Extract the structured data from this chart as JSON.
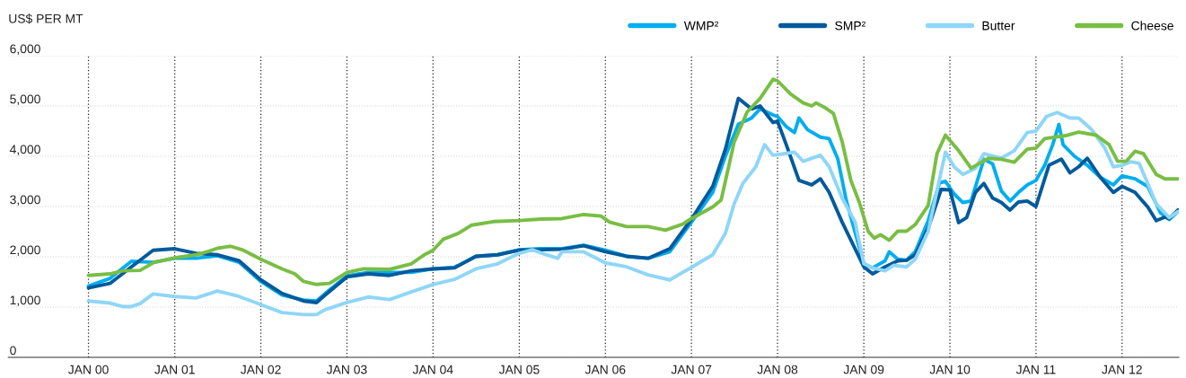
{
  "chart_data": {
    "type": "line",
    "ylabel": "US$ PER MT",
    "xlim": [
      "1999-01-26",
      "2012-08-29"
    ],
    "ylim": [
      0,
      6000
    ],
    "xticks": [
      {
        "value": "2000-01",
        "label": "JAN 00"
      },
      {
        "value": "2001-01",
        "label": "JAN 01"
      },
      {
        "value": "2002-01",
        "label": "JAN 02"
      },
      {
        "value": "2003-01",
        "label": "JAN 03"
      },
      {
        "value": "2004-01",
        "label": "JAN 04"
      },
      {
        "value": "2005-01",
        "label": "JAN 05"
      },
      {
        "value": "2006-01",
        "label": "JAN 06"
      },
      {
        "value": "2007-01",
        "label": "JAN 07"
      },
      {
        "value": "2008-01",
        "label": "JAN 08"
      },
      {
        "value": "2009-01",
        "label": "JAN 09"
      },
      {
        "value": "2010-01",
        "label": "JAN 10"
      },
      {
        "value": "2011-01",
        "label": "JAN 11"
      },
      {
        "value": "2012-01",
        "label": "JAN 12"
      }
    ],
    "yticks": [
      0,
      {
        "value": 1000,
        "label": "1,000"
      },
      {
        "value": 2000,
        "label": "2,000"
      },
      {
        "value": 3000,
        "label": "3,000"
      },
      {
        "value": 4000,
        "label": "4,000"
      },
      {
        "value": 5000,
        "label": "5,000"
      },
      {
        "value": 6000,
        "label": "6,000"
      }
    ],
    "grid": true,
    "legend": "top right",
    "series": [
      {
        "name": "WMP²",
        "color": "#00aeef",
        "x": [
          "2000-01-01",
          "2000-04-01",
          "2000-07-01",
          "2000-10-01",
          "2001-01-01",
          "2001-04-01",
          "2001-07-01",
          "2001-10-01",
          "2002-01-01",
          "2002-04-01",
          "2002-07-01",
          "2002-08-25",
          "2002-10-01",
          "2003-01-01",
          "2003-04-01",
          "2003-07-01",
          "2003-10-01",
          "2004-01-01",
          "2004-04-01",
          "2004-07-01",
          "2004-10-01",
          "2005-01-01",
          "2005-04-01",
          "2005-07-01",
          "2005-10-01",
          "2006-01-01",
          "2006-04-01",
          "2006-07-01",
          "2006-10-01",
          "2007-01-01",
          "2007-04-01",
          "2007-05-25",
          "2007-07-19",
          "2007-09-13",
          "2007-10-19",
          "2007-12-13",
          "2008-01-01",
          "2008-02-07",
          "2008-03-13",
          "2008-04-01",
          "2008-05-07",
          "2008-07-01",
          "2008-08-07",
          "2008-09-13",
          "2008-10-19",
          "2009-01-01",
          "2009-02-07",
          "2009-04-01",
          "2009-04-19",
          "2009-05-25",
          "2009-07-01",
          "2009-08-07",
          "2009-10-01",
          "2009-11-18",
          "2009-12-13",
          "2010-01-19",
          "2010-02-25",
          "2010-04-01",
          "2010-05-25",
          "2010-07-01",
          "2010-08-07",
          "2010-09-13",
          "2010-10-19",
          "2010-11-25",
          "2011-01-01",
          "2011-02-07",
          "2011-03-13",
          "2011-04-08",
          "2011-04-26",
          "2011-06-13",
          "2011-08-07",
          "2011-10-01",
          "2011-11-25",
          "2012-01-01",
          "2012-02-25",
          "2012-04-19",
          "2012-06-13",
          "2012-07-19",
          "2012-08-25"
        ],
        "values": [
          1420,
          1570,
          1910,
          1890,
          1970,
          1970,
          2020,
          1890,
          1510,
          1240,
          1140,
          1120,
          1270,
          1620,
          1690,
          1690,
          1690,
          1760,
          1790,
          2010,
          2040,
          2140,
          2160,
          2160,
          2230,
          2130,
          2010,
          1970,
          2100,
          2690,
          3280,
          4000,
          4640,
          4760,
          4940,
          4820,
          4790,
          4590,
          4470,
          4760,
          4530,
          4380,
          4350,
          3940,
          3110,
          1860,
          1780,
          1920,
          2100,
          1950,
          1930,
          2100,
          2720,
          3470,
          3500,
          3250,
          3080,
          3110,
          3940,
          3850,
          3310,
          3110,
          3280,
          3430,
          3520,
          3820,
          4230,
          4630,
          4230,
          4000,
          3820,
          3580,
          3430,
          3610,
          3550,
          3400,
          2870,
          2740,
          2900
        ]
      },
      {
        "name": "SMP²",
        "color": "#005a9c",
        "x": [
          "2000-01-01",
          "2000-04-01",
          "2000-07-01",
          "2000-10-01",
          "2001-01-01",
          "2001-04-01",
          "2001-07-01",
          "2001-10-01",
          "2002-01-01",
          "2002-04-01",
          "2002-07-01",
          "2002-08-25",
          "2002-10-01",
          "2003-01-01",
          "2003-04-01",
          "2003-07-01",
          "2003-10-01",
          "2004-01-01",
          "2004-04-01",
          "2004-07-01",
          "2004-10-01",
          "2005-01-01",
          "2005-04-01",
          "2005-07-01",
          "2005-10-01",
          "2006-01-01",
          "2006-04-01",
          "2006-07-01",
          "2006-10-01",
          "2007-01-01",
          "2007-04-01",
          "2007-05-25",
          "2007-07-19",
          "2007-09-13",
          "2007-10-19",
          "2007-12-13",
          "2008-01-01",
          "2008-02-07",
          "2008-04-01",
          "2008-05-25",
          "2008-07-01",
          "2008-08-07",
          "2008-10-01",
          "2009-01-01",
          "2009-02-07",
          "2009-04-01",
          "2009-05-25",
          "2009-07-01",
          "2009-08-07",
          "2009-10-01",
          "2009-11-25",
          "2010-01-01",
          "2010-02-07",
          "2010-03-13",
          "2010-04-19",
          "2010-05-25",
          "2010-07-01",
          "2010-08-07",
          "2010-09-13",
          "2010-10-19",
          "2010-11-25",
          "2011-01-01",
          "2011-02-25",
          "2011-04-19",
          "2011-05-25",
          "2011-07-01",
          "2011-08-07",
          "2011-10-01",
          "2011-11-25",
          "2012-01-01",
          "2012-02-25",
          "2012-04-19",
          "2012-05-25",
          "2012-07-01",
          "2012-07-19",
          "2012-08-25"
        ],
        "values": [
          1380,
          1470,
          1800,
          2130,
          2160,
          2070,
          2040,
          1920,
          1540,
          1270,
          1120,
          1090,
          1240,
          1600,
          1660,
          1630,
          1720,
          1760,
          1780,
          2010,
          2040,
          2130,
          2140,
          2150,
          2220,
          2100,
          2010,
          1970,
          2160,
          2750,
          3400,
          4140,
          5150,
          4940,
          5000,
          4670,
          4700,
          4230,
          3520,
          3430,
          3550,
          3280,
          2690,
          1800,
          1660,
          1800,
          1920,
          1930,
          2040,
          2570,
          3340,
          3330,
          2680,
          2780,
          3280,
          3460,
          3170,
          3080,
          2930,
          3090,
          3110,
          3000,
          3820,
          3940,
          3670,
          3790,
          3960,
          3580,
          3280,
          3400,
          3280,
          2990,
          2720,
          2790,
          2760,
          2930
        ]
      },
      {
        "name": "Butter",
        "color": "#8fd6f7",
        "x": [
          "2000-01-01",
          "2000-04-01",
          "2000-05-25",
          "2000-07-01",
          "2000-08-07",
          "2000-10-01",
          "2001-01-01",
          "2001-04-01",
          "2001-07-01",
          "2001-10-01",
          "2002-01-01",
          "2002-04-01",
          "2002-07-01",
          "2002-08-25",
          "2002-10-01",
          "2003-01-01",
          "2003-04-01",
          "2003-07-01",
          "2003-10-01",
          "2004-01-01",
          "2004-04-01",
          "2004-07-01",
          "2004-10-01",
          "2005-01-01",
          "2005-02-25",
          "2005-04-19",
          "2005-06-13",
          "2005-07-01",
          "2005-10-01",
          "2006-01-01",
          "2006-04-01",
          "2006-07-01",
          "2006-10-01",
          "2007-01-01",
          "2007-04-01",
          "2007-05-25",
          "2007-07-01",
          "2007-08-07",
          "2007-10-01",
          "2007-11-07",
          "2007-12-13",
          "2008-03-13",
          "2008-04-19",
          "2008-07-01",
          "2008-08-07",
          "2008-10-01",
          "2008-11-25",
          "2009-01-01",
          "2009-02-07",
          "2009-04-01",
          "2009-05-07",
          "2009-07-01",
          "2009-08-07",
          "2009-10-01",
          "2009-11-14",
          "2009-12-13",
          "2010-01-19",
          "2010-02-25",
          "2010-04-19",
          "2010-05-25",
          "2010-08-07",
          "2010-10-01",
          "2010-11-25",
          "2011-01-01",
          "2011-02-14",
          "2011-04-01",
          "2011-05-25",
          "2011-07-01",
          "2011-08-25",
          "2011-10-19",
          "2011-11-25",
          "2012-01-01",
          "2012-02-07",
          "2012-03-13",
          "2012-04-19",
          "2012-05-25",
          "2012-07-19",
          "2012-08-25"
        ],
        "values": [
          1120,
          1080,
          1010,
          1010,
          1070,
          1260,
          1210,
          1180,
          1320,
          1210,
          1050,
          890,
          850,
          850,
          950,
          1090,
          1200,
          1150,
          1300,
          1450,
          1550,
          1760,
          1860,
          2070,
          2140,
          2050,
          1970,
          2100,
          2100,
          1880,
          1800,
          1640,
          1540,
          1790,
          2040,
          2470,
          3050,
          3460,
          3790,
          4230,
          4020,
          4080,
          3900,
          4020,
          3790,
          3170,
          2690,
          1860,
          1780,
          1720,
          1830,
          1800,
          1950,
          2510,
          3460,
          4080,
          3790,
          3640,
          3760,
          4050,
          3960,
          4110,
          4470,
          4500,
          4790,
          4870,
          4760,
          4760,
          4530,
          4170,
          3790,
          3820,
          3890,
          3860,
          3460,
          3050,
          2780,
          2900
        ]
      },
      {
        "name": "Cheese",
        "color": "#78be43",
        "x": [
          "2000-01-01",
          "2000-04-01",
          "2000-05-25",
          "2000-08-07",
          "2000-10-01",
          "2001-01-01",
          "2001-04-01",
          "2001-05-25",
          "2001-07-01",
          "2001-08-25",
          "2001-10-19",
          "2002-01-01",
          "2002-04-01",
          "2002-05-25",
          "2002-07-01",
          "2002-08-25",
          "2002-10-19",
          "2003-01-01",
          "2003-03-13",
          "2003-07-01",
          "2003-10-01",
          "2003-11-25",
          "2004-01-01",
          "2004-02-14",
          "2004-04-19",
          "2004-06-13",
          "2004-09-13",
          "2005-01-01",
          "2005-04-01",
          "2005-07-01",
          "2005-10-01",
          "2005-12-13",
          "2006-01-19",
          "2006-04-01",
          "2006-07-01",
          "2006-09-13",
          "2006-11-25",
          "2007-01-01",
          "2007-04-01",
          "2007-05-07",
          "2007-07-01",
          "2007-08-25",
          "2007-10-19",
          "2007-12-13",
          "2008-01-01",
          "2008-02-25",
          "2008-04-19",
          "2008-05-25",
          "2008-06-13",
          "2008-07-19",
          "2008-08-25",
          "2008-10-01",
          "2008-11-07",
          "2008-12-13",
          "2009-01-19",
          "2009-02-14",
          "2009-03-13",
          "2009-04-19",
          "2009-05-25",
          "2009-07-01",
          "2009-08-07",
          "2009-10-01",
          "2009-11-07",
          "2009-12-13",
          "2010-02-07",
          "2010-04-01",
          "2010-06-13",
          "2010-08-07",
          "2010-10-01",
          "2010-11-25",
          "2011-01-01",
          "2011-02-07",
          "2011-05-07",
          "2011-07-01",
          "2011-09-13",
          "2011-11-07",
          "2011-12-13",
          "2012-01-19",
          "2012-02-25",
          "2012-04-01",
          "2012-05-25",
          "2012-07-01",
          "2012-08-25"
        ],
        "values": [
          1630,
          1660,
          1720,
          1730,
          1880,
          1980,
          2040,
          2110,
          2170,
          2210,
          2130,
          1950,
          1760,
          1660,
          1510,
          1450,
          1470,
          1690,
          1760,
          1750,
          1860,
          2040,
          2130,
          2350,
          2470,
          2630,
          2700,
          2720,
          2750,
          2760,
          2840,
          2810,
          2690,
          2600,
          2600,
          2530,
          2650,
          2760,
          2990,
          3130,
          4280,
          4880,
          5150,
          5530,
          5500,
          5240,
          5060,
          5000,
          5060,
          4970,
          4850,
          4290,
          3520,
          3080,
          2510,
          2370,
          2440,
          2330,
          2510,
          2510,
          2640,
          3020,
          4050,
          4420,
          4110,
          3760,
          3960,
          3940,
          3880,
          4140,
          4160,
          4350,
          4410,
          4480,
          4420,
          4230,
          3900,
          3900,
          4100,
          4050,
          3640,
          3550,
          3550
        ]
      }
    ]
  }
}
